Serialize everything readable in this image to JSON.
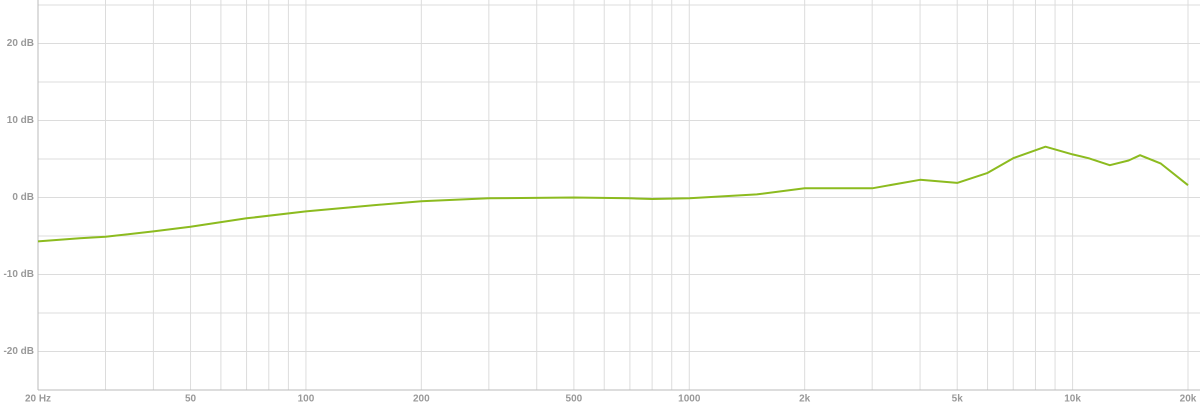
{
  "chart_data": {
    "type": "line",
    "xscale": "log",
    "x": [
      20,
      25.7,
      30,
      40,
      50,
      70,
      100,
      150,
      200,
      300,
      500,
      700,
      800,
      1000,
      1500,
      2000,
      2800,
      3000,
      4000,
      5000,
      6000,
      7000,
      8500,
      10000,
      11000,
      12500,
      14000,
      15000,
      17000,
      20000
    ],
    "series": [
      {
        "color": "#8cbb1f",
        "values": [
          -5.7,
          -5.3,
          -5.1,
          -4.4,
          -3.8,
          -2.7,
          -1.8,
          -1.0,
          -0.5,
          -0.1,
          0.0,
          -0.1,
          -0.2,
          -0.1,
          0.4,
          1.2,
          1.2,
          1.2,
          2.3,
          1.9,
          3.2,
          5.1,
          6.6,
          5.6,
          5.1,
          4.2,
          4.8,
          5.5,
          4.4,
          1.6
        ]
      }
    ],
    "xlim": [
      20,
      20000
    ],
    "xticks": [
      {
        "value": 20,
        "label": "20 Hz"
      },
      50,
      100,
      200,
      500,
      1000,
      {
        "value": 2000,
        "label": "2k"
      },
      {
        "value": 5000,
        "label": "5k"
      },
      {
        "value": 10000,
        "label": "10k"
      },
      {
        "value": 20000,
        "label": "20k"
      }
    ],
    "x_minor_ticks": [
      30,
      40,
      60,
      70,
      80,
      90,
      300,
      400,
      600,
      700,
      800,
      900,
      3000,
      4000,
      6000,
      7000,
      8000,
      9000
    ],
    "ylim": [
      -25,
      25
    ],
    "yticks": [
      {
        "value": -20,
        "label": "-20 dB"
      },
      {
        "value": -10,
        "label": "-10 dB"
      },
      {
        "value": 0,
        "label": "0 dB"
      },
      {
        "value": 10,
        "label": "10 dB"
      },
      {
        "value": 20,
        "label": "20 dB"
      }
    ],
    "y_minor_ticks": [
      -25,
      -15,
      -5,
      5,
      15,
      25
    ],
    "grid": true
  }
}
